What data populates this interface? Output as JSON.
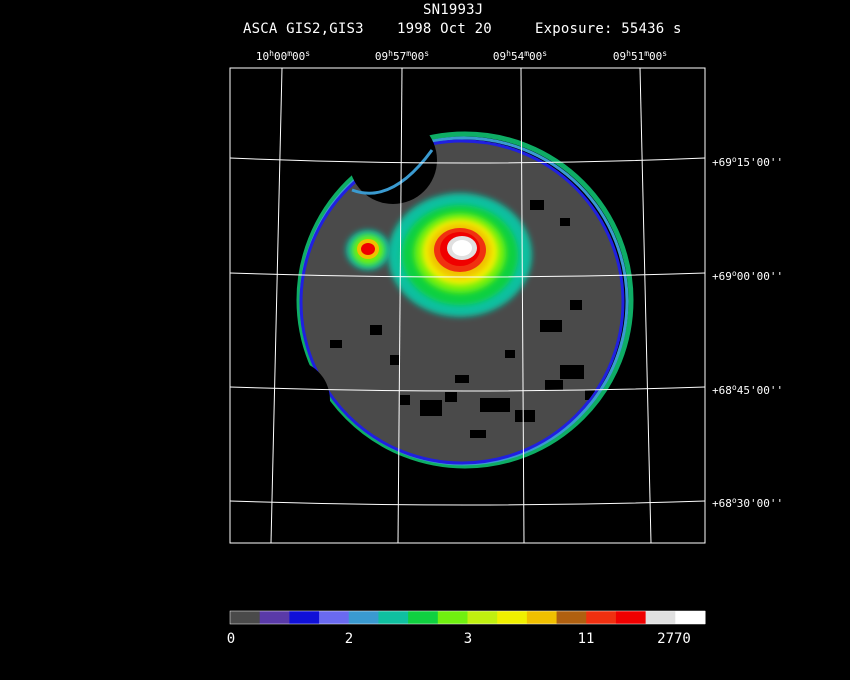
{
  "header": {
    "title": "SN1993J",
    "instrument": "ASCA GIS2,GIS3",
    "date": "1998 Oct 20",
    "exposure": "Exposure: 55436 s"
  },
  "ra_labels": [
    {
      "h": "10",
      "m": "00",
      "s": "00"
    },
    {
      "h": "09",
      "m": "57",
      "s": "00"
    },
    {
      "h": "09",
      "m": "54",
      "s": "00"
    },
    {
      "h": "09",
      "m": "51",
      "s": "00"
    }
  ],
  "dec_labels": [
    {
      "d": "+69",
      "m": "15",
      "s": "00"
    },
    {
      "d": "+69",
      "m": "00",
      "s": "00"
    },
    {
      "d": "+68",
      "m": "45",
      "s": "00"
    },
    {
      "d": "+68",
      "m": "30",
      "s": "00"
    }
  ],
  "colorbar": {
    "colors": [
      "#4a4a4a",
      "#5a3aa8",
      "#1010d8",
      "#6a6af0",
      "#3a9ad0",
      "#10c0a0",
      "#10d040",
      "#70f010",
      "#c0f010",
      "#f0f000",
      "#f0c000",
      "#b06010",
      "#f03010",
      "#f00000",
      "#e0e0e0",
      "#ffffff"
    ],
    "labels": [
      "0",
      "2",
      "3",
      "11",
      "2770"
    ]
  }
}
